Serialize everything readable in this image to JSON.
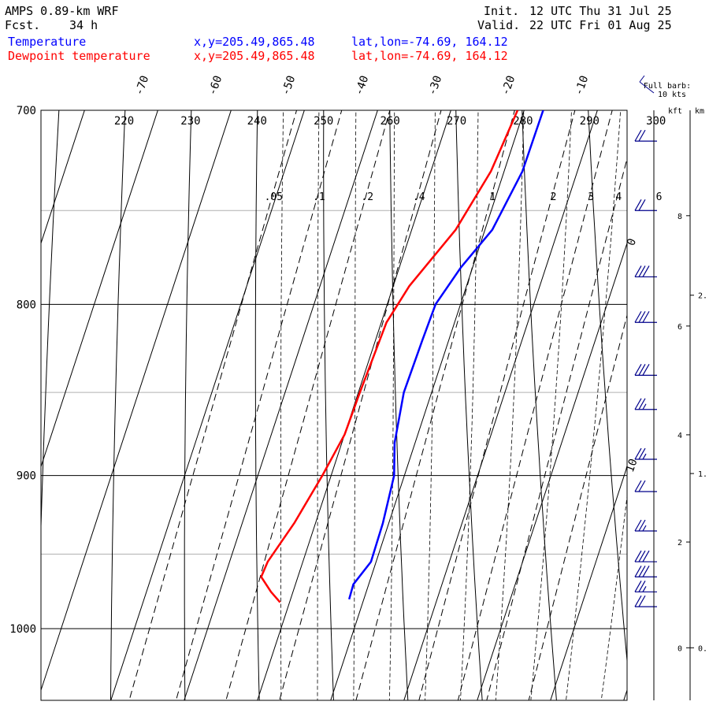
{
  "header": {
    "model": "AMPS 0.89-km WRF",
    "fcst_label": "Fcst.",
    "fcst_value": "34 h",
    "init_label": "Init.",
    "init_value": "12 UTC Thu 31 Jul 25",
    "valid_label": "Valid.",
    "valid_value": "22 UTC Fri 01 Aug 25"
  },
  "legend": [
    {
      "name": "Temperature",
      "xy": "x,y=205.49,865.48",
      "latlon": "lat,lon=-74.69, 164.12",
      "color": "#0000ff"
    },
    {
      "name": "Dewpoint temperature",
      "xy": "x,y=205.49,865.48",
      "latlon": "lat,lon=-74.69, 164.12",
      "color": "#ff0000"
    }
  ],
  "barb_legend": {
    "line1": "Full barb:",
    "line2": "10 kts"
  },
  "height_axis": {
    "kft_label": "kft",
    "km_label": "km",
    "kft_ticks": [
      "8",
      "6",
      "4",
      "2",
      "0"
    ],
    "km_ticks": [
      "2.",
      "1.",
      "0."
    ],
    "kft_values": [
      8,
      6,
      4,
      2,
      0
    ],
    "km_values": [
      2,
      1,
      0
    ]
  },
  "chart_data": {
    "type": "line",
    "subtype": "skew-T log-p",
    "pressure_ticks": [
      "700",
      "800",
      "900",
      "1000"
    ],
    "pressure_values": [
      700,
      800,
      900,
      1000
    ],
    "pressure_range": [
      700,
      1050
    ],
    "isotherm_labels": [
      "-70",
      "-60",
      "-50",
      "-40",
      "-30",
      "-20",
      "-10",
      "0",
      "10"
    ],
    "isotherm_values": [
      -70,
      -60,
      -50,
      -40,
      -30,
      -20,
      -10,
      0,
      10
    ],
    "theta_labels": [
      "220",
      "230",
      "240",
      "250",
      "260",
      "270",
      "280",
      "290",
      "300"
    ],
    "theta_values": [
      220,
      230,
      240,
      250,
      260,
      270,
      280,
      290,
      300
    ],
    "mixing_ratio_labels": [
      ".05",
      ".1",
      ".2",
      ".4",
      "1",
      "2",
      "3",
      "4",
      "6"
    ],
    "mixing_ratio_values": [
      0.05,
      0.1,
      0.2,
      0.4,
      1,
      2,
      3,
      4,
      6
    ],
    "series": [
      {
        "name": "Temperature",
        "color": "#0000ff",
        "points": [
          {
            "p": 700,
            "t": -17.4
          },
          {
            "p": 730,
            "t": -17.5
          },
          {
            "p": 760,
            "t": -19.0
          },
          {
            "p": 780,
            "t": -21.6
          },
          {
            "p": 800,
            "t": -23.4
          },
          {
            "p": 820,
            "t": -23.6
          },
          {
            "p": 850,
            "t": -23.8
          },
          {
            "p": 880,
            "t": -22.8
          },
          {
            "p": 900,
            "t": -21.4
          },
          {
            "p": 930,
            "t": -20.8
          },
          {
            "p": 955,
            "t": -20.7
          },
          {
            "p": 970,
            "t": -22.1
          },
          {
            "p": 980,
            "t": -22.0
          }
        ]
      },
      {
        "name": "Dewpoint temperature",
        "color": "#ff0000",
        "points": [
          {
            "p": 700,
            "t": -20.9
          },
          {
            "p": 730,
            "t": -21.8
          },
          {
            "p": 760,
            "t": -24.0
          },
          {
            "p": 790,
            "t": -27.8
          },
          {
            "p": 810,
            "t": -29.3
          },
          {
            "p": 850,
            "t": -29.8
          },
          {
            "p": 875,
            "t": -30.0
          },
          {
            "p": 900,
            "t": -31.2
          },
          {
            "p": 930,
            "t": -32.9
          },
          {
            "p": 955,
            "t": -34.8
          },
          {
            "p": 965,
            "t": -35.0
          },
          {
            "p": 975,
            "t": -33.0
          },
          {
            "p": 982,
            "t": -31.3
          }
        ]
      }
    ],
    "wind_barbs": [
      {
        "p": 715,
        "speed_kt": 20
      },
      {
        "p": 750,
        "speed_kt": 20
      },
      {
        "p": 785,
        "speed_kt": 30
      },
      {
        "p": 810,
        "speed_kt": 30
      },
      {
        "p": 840,
        "speed_kt": 30
      },
      {
        "p": 860,
        "speed_kt": 25
      },
      {
        "p": 890,
        "speed_kt": 25
      },
      {
        "p": 910,
        "speed_kt": 20
      },
      {
        "p": 935,
        "speed_kt": 25
      },
      {
        "p": 955,
        "speed_kt": 30
      },
      {
        "p": 965,
        "speed_kt": 30
      },
      {
        "p": 975,
        "speed_kt": 25
      },
      {
        "p": 985,
        "speed_kt": 20
      }
    ]
  }
}
